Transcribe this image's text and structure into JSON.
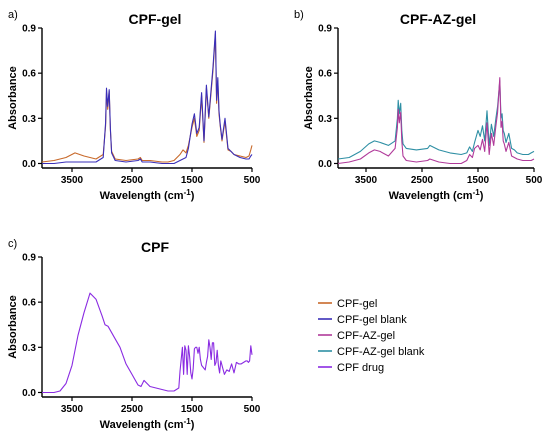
{
  "chart_data": [
    {
      "panel": "a)",
      "type": "line",
      "title": "CPF-gel",
      "xlabel": "Wavelength (cm-1)",
      "xlabel_main": "Wavelength (cm",
      "xlabel_sup": "-1",
      "xlabel_tail": ")",
      "ylabel": "Absorbance",
      "xlim": [
        4000,
        500
      ],
      "ylim": [
        -0.03,
        0.9
      ],
      "xticks": [
        3500,
        2500,
        1500,
        500
      ],
      "yticks": [
        0.0,
        0.3,
        0.6,
        0.9
      ],
      "yticklabels": [
        "0.0",
        "0.3",
        "0.6",
        "0.9"
      ],
      "series": [
        {
          "name": "CPF-gel",
          "color": "#c8692a",
          "x": [
            4000,
            3800,
            3600,
            3450,
            3300,
            3100,
            2980,
            2940,
            2925,
            2905,
            2880,
            2860,
            2840,
            2780,
            2600,
            2400,
            2360,
            2330,
            2200,
            2000,
            1900,
            1800,
            1700,
            1650,
            1600,
            1560,
            1500,
            1460,
            1420,
            1380,
            1340,
            1300,
            1260,
            1220,
            1180,
            1150,
            1110,
            1090,
            1070,
            1050,
            1030,
            1000,
            950,
            900,
            850,
            800,
            700,
            600,
            550,
            520,
            500
          ],
          "values": [
            0.01,
            0.02,
            0.04,
            0.07,
            0.05,
            0.03,
            0.06,
            0.25,
            0.47,
            0.36,
            0.48,
            0.22,
            0.08,
            0.03,
            0.02,
            0.03,
            0.04,
            0.02,
            0.02,
            0.01,
            0.01,
            0.02,
            0.06,
            0.09,
            0.07,
            0.12,
            0.24,
            0.3,
            0.18,
            0.22,
            0.45,
            0.14,
            0.5,
            0.3,
            0.48,
            0.62,
            0.86,
            0.4,
            0.55,
            0.33,
            0.25,
            0.15,
            0.28,
            0.09,
            0.08,
            0.06,
            0.05,
            0.04,
            0.05,
            0.09,
            0.12
          ]
        },
        {
          "name": "CPF-gel blank",
          "color": "#3a2fb8",
          "x": [
            4000,
            3800,
            3600,
            3450,
            3300,
            3100,
            2980,
            2940,
            2925,
            2905,
            2880,
            2860,
            2840,
            2780,
            2600,
            2400,
            2360,
            2330,
            2200,
            2000,
            1900,
            1800,
            1700,
            1650,
            1600,
            1560,
            1500,
            1460,
            1420,
            1380,
            1340,
            1300,
            1260,
            1220,
            1180,
            1150,
            1110,
            1090,
            1070,
            1050,
            1030,
            1000,
            950,
            900,
            850,
            800,
            700,
            600,
            550,
            520,
            500
          ],
          "values": [
            0.0,
            0.0,
            0.01,
            0.01,
            0.01,
            0.01,
            0.04,
            0.27,
            0.5,
            0.38,
            0.49,
            0.23,
            0.07,
            0.02,
            0.01,
            0.02,
            0.03,
            0.01,
            0.01,
            0.0,
            0.0,
            0.0,
            0.02,
            0.03,
            0.04,
            0.1,
            0.26,
            0.33,
            0.2,
            0.24,
            0.47,
            0.15,
            0.52,
            0.31,
            0.5,
            0.64,
            0.88,
            0.42,
            0.57,
            0.35,
            0.26,
            0.16,
            0.3,
            0.1,
            0.08,
            0.06,
            0.04,
            0.03,
            0.03,
            0.05,
            0.06
          ]
        }
      ]
    },
    {
      "panel": "b)",
      "type": "line",
      "title": "CPF-AZ-gel",
      "xlabel": "Wavelength (cm-1)",
      "xlabel_main": "Wavelength (cm",
      "xlabel_sup": "-1",
      "xlabel_tail": ")",
      "ylabel": "Absorbance",
      "xlim": [
        4000,
        500
      ],
      "ylim": [
        -0.03,
        0.9
      ],
      "xticks": [
        3500,
        2500,
        1500,
        500
      ],
      "yticks": [
        0.0,
        0.3,
        0.6,
        0.9
      ],
      "yticklabels": [
        "0.0",
        "0.3",
        "0.6",
        "0.9"
      ],
      "series": [
        {
          "name": "CPF-AZ-gel blank",
          "color": "#2e8fa4",
          "x": [
            4000,
            3800,
            3600,
            3450,
            3350,
            3250,
            3100,
            2980,
            2940,
            2925,
            2905,
            2880,
            2860,
            2840,
            2780,
            2600,
            2400,
            2360,
            2200,
            2000,
            1800,
            1700,
            1650,
            1600,
            1560,
            1500,
            1460,
            1420,
            1380,
            1340,
            1300,
            1260,
            1220,
            1180,
            1150,
            1110,
            1090,
            1070,
            1050,
            1030,
            1000,
            950,
            900,
            850,
            800,
            700,
            600,
            550,
            500
          ],
          "values": [
            0.03,
            0.04,
            0.08,
            0.13,
            0.15,
            0.14,
            0.12,
            0.15,
            0.3,
            0.42,
            0.33,
            0.4,
            0.22,
            0.13,
            0.1,
            0.09,
            0.1,
            0.12,
            0.09,
            0.07,
            0.06,
            0.07,
            0.11,
            0.08,
            0.14,
            0.22,
            0.18,
            0.25,
            0.15,
            0.35,
            0.12,
            0.26,
            0.18,
            0.3,
            0.38,
            0.55,
            0.3,
            0.33,
            0.22,
            0.2,
            0.14,
            0.2,
            0.1,
            0.09,
            0.07,
            0.06,
            0.06,
            0.07,
            0.08
          ]
        },
        {
          "name": "CPF-AZ-gel",
          "color": "#b03a9a",
          "x": [
            4000,
            3800,
            3600,
            3450,
            3350,
            3250,
            3100,
            2980,
            2940,
            2925,
            2905,
            2880,
            2860,
            2840,
            2780,
            2600,
            2400,
            2360,
            2200,
            2000,
            1800,
            1700,
            1650,
            1600,
            1560,
            1500,
            1460,
            1420,
            1380,
            1340,
            1300,
            1260,
            1220,
            1180,
            1150,
            1110,
            1090,
            1070,
            1050,
            1030,
            1000,
            950,
            900,
            850,
            800,
            700,
            600,
            550,
            500
          ],
          "values": [
            0.0,
            0.01,
            0.03,
            0.07,
            0.09,
            0.08,
            0.05,
            0.1,
            0.24,
            0.36,
            0.27,
            0.34,
            0.15,
            0.05,
            0.02,
            0.01,
            0.02,
            0.03,
            0.01,
            0.0,
            0.0,
            0.02,
            0.06,
            0.04,
            0.1,
            0.12,
            0.09,
            0.16,
            0.08,
            0.27,
            0.06,
            0.2,
            0.12,
            0.25,
            0.34,
            0.57,
            0.24,
            0.28,
            0.15,
            0.13,
            0.08,
            0.14,
            0.05,
            0.04,
            0.03,
            0.02,
            0.02,
            0.02,
            0.03
          ]
        }
      ]
    },
    {
      "panel": "c)",
      "type": "line",
      "title": "CPF",
      "xlabel": "Wavelength (cm-1)",
      "xlabel_main": "Wavelength (cm",
      "xlabel_sup": "-1",
      "xlabel_tail": ")",
      "ylabel": "Absorbance",
      "xlim": [
        4000,
        500
      ],
      "ylim": [
        -0.03,
        0.9
      ],
      "xticks": [
        3500,
        2500,
        1500,
        500
      ],
      "yticks": [
        0.0,
        0.3,
        0.6,
        0.9
      ],
      "yticklabels": [
        "0.0",
        "0.3",
        "0.6",
        "0.9"
      ],
      "series": [
        {
          "name": "CPF drug",
          "color": "#8a2be2",
          "x": [
            4000,
            3900,
            3800,
            3700,
            3600,
            3500,
            3400,
            3300,
            3200,
            3100,
            3000,
            2950,
            2900,
            2800,
            2700,
            2600,
            2500,
            2400,
            2350,
            2300,
            2200,
            2100,
            2000,
            1900,
            1800,
            1720,
            1700,
            1660,
            1640,
            1620,
            1600,
            1580,
            1560,
            1540,
            1520,
            1500,
            1480,
            1460,
            1440,
            1420,
            1400,
            1380,
            1360,
            1340,
            1320,
            1300,
            1280,
            1260,
            1240,
            1220,
            1200,
            1180,
            1160,
            1140,
            1120,
            1100,
            1080,
            1060,
            1040,
            1020,
            1000,
            960,
            920,
            880,
            840,
            800,
            760,
            720,
            680,
            640,
            600,
            580,
            560,
            540,
            520,
            500
          ],
          "values": [
            0.0,
            0.0,
            0.0,
            0.01,
            0.06,
            0.18,
            0.38,
            0.53,
            0.66,
            0.62,
            0.51,
            0.45,
            0.44,
            0.37,
            0.3,
            0.19,
            0.12,
            0.05,
            0.04,
            0.08,
            0.04,
            0.03,
            0.02,
            0.01,
            0.01,
            0.03,
            0.14,
            0.3,
            0.12,
            0.31,
            0.28,
            0.12,
            0.31,
            0.24,
            0.13,
            0.09,
            0.16,
            0.29,
            0.3,
            0.3,
            0.26,
            0.3,
            0.22,
            0.18,
            0.17,
            0.16,
            0.15,
            0.2,
            0.24,
            0.35,
            0.3,
            0.22,
            0.33,
            0.33,
            0.18,
            0.2,
            0.28,
            0.18,
            0.13,
            0.21,
            0.18,
            0.12,
            0.15,
            0.14,
            0.19,
            0.13,
            0.2,
            0.19,
            0.19,
            0.2,
            0.21,
            0.21,
            0.2,
            0.21,
            0.31,
            0.25
          ]
        }
      ]
    }
  ],
  "legend": [
    {
      "label": "CPF-gel",
      "color": "#c8692a"
    },
    {
      "label": "CPF-gel blank",
      "color": "#3a2fb8"
    },
    {
      "label": "CPF-AZ-gel",
      "color": "#b03a9a"
    },
    {
      "label": "CPF-AZ-gel blank",
      "color": "#2e8fa4"
    },
    {
      "label": "CPF drug",
      "color": "#8a2be2"
    }
  ]
}
